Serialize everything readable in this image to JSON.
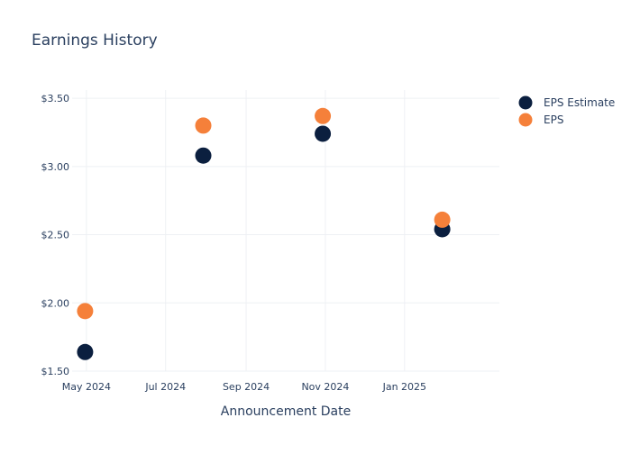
{
  "chart_data": {
    "type": "scatter",
    "title": "Earnings History",
    "xlabel": "Announcement Date",
    "ylabel": "",
    "x_ticks": [
      "May 2024",
      "Jul 2024",
      "Sep 2024",
      "Nov 2024",
      "Jan 2025"
    ],
    "x_tick_dates": [
      "2024-05-01",
      "2024-07-01",
      "2024-09-01",
      "2024-11-01",
      "2025-01-01"
    ],
    "xlim": [
      "2024-04-20",
      "2025-03-15"
    ],
    "y_ticks": [
      "$1.50",
      "$2.00",
      "$2.50",
      "$3.00",
      "$3.50"
    ],
    "y_tick_values": [
      1.5,
      2.0,
      2.5,
      3.0,
      3.5
    ],
    "ylim": [
      1.5,
      3.56
    ],
    "grid": true,
    "legend_position": "top-right",
    "x": [
      "2024-04-30",
      "2024-07-30",
      "2024-10-30",
      "2025-01-30"
    ],
    "series": [
      {
        "name": "EPS Estimate",
        "color": "#0b1f3f",
        "values": [
          1.64,
          3.08,
          3.24,
          2.54
        ]
      },
      {
        "name": "EPS",
        "color": "#f5803a",
        "values": [
          1.94,
          3.3,
          3.37,
          2.61
        ]
      }
    ]
  }
}
